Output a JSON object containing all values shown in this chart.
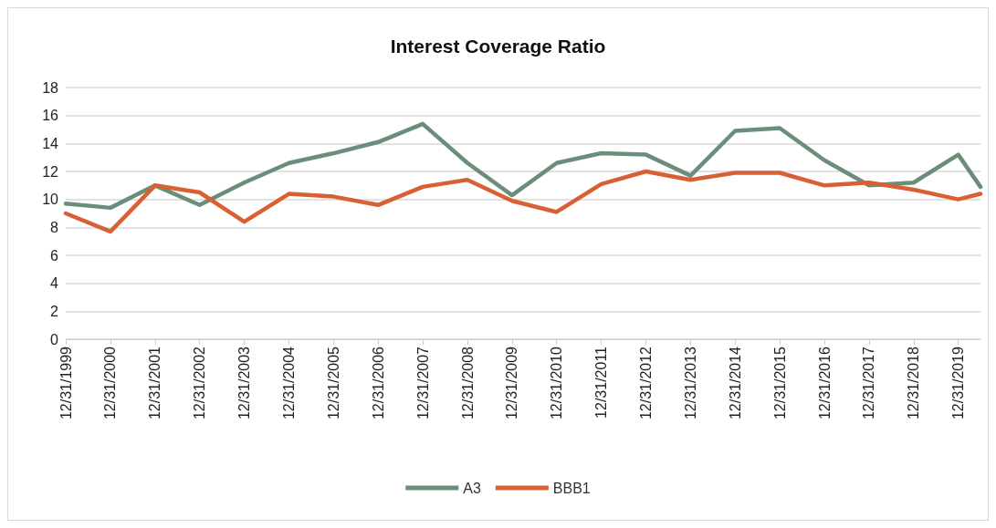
{
  "chart_data": {
    "type": "line",
    "title": "Interest Coverage Ratio",
    "x": [
      "1999-12-31",
      "2000-12-31",
      "2001-12-31",
      "2002-12-31",
      "2003-12-31",
      "2004-12-31",
      "2005-12-31",
      "2006-12-31",
      "2007-12-31",
      "2008-12-31",
      "2009-12-31",
      "2010-12-31",
      "2011-12-31",
      "2012-12-31",
      "2013-12-31",
      "2014-12-31",
      "2015-12-31",
      "2016-12-31",
      "2017-12-31",
      "2018-12-31",
      "2019-12-31",
      "2020-06-30"
    ],
    "series": [
      {
        "name": "A3",
        "color": "#6b8e7a",
        "values": [
          9.7,
          9.4,
          11.0,
          9.6,
          11.2,
          12.6,
          13.3,
          14.1,
          15.4,
          12.6,
          10.3,
          12.6,
          13.3,
          13.2,
          11.7,
          14.9,
          15.1,
          12.8,
          11.0,
          11.2,
          13.2,
          10.9
        ]
      },
      {
        "name": "BBB1",
        "color": "#d95f35",
        "values": [
          9.0,
          7.7,
          11.0,
          10.5,
          8.4,
          10.4,
          10.2,
          9.6,
          10.9,
          11.4,
          9.9,
          9.1,
          11.1,
          12.0,
          11.4,
          11.9,
          11.9,
          11.0,
          11.2,
          10.7,
          10.0,
          10.4
        ]
      }
    ],
    "xlim": [
      "1999-12-31",
      "2020-06-30"
    ],
    "xticks": [
      {
        "value": "1999-12-31",
        "label": "12/31/1999"
      },
      {
        "value": "2000-12-31",
        "label": "12/31/2000"
      },
      {
        "value": "2001-12-31",
        "label": "12/31/2001"
      },
      {
        "value": "2002-12-31",
        "label": "12/31/2002"
      },
      {
        "value": "2003-12-31",
        "label": "12/31/2003"
      },
      {
        "value": "2004-12-31",
        "label": "12/31/2004"
      },
      {
        "value": "2005-12-31",
        "label": "12/31/2005"
      },
      {
        "value": "2006-12-31",
        "label": "12/31/2006"
      },
      {
        "value": "2007-12-31",
        "label": "12/31/2007"
      },
      {
        "value": "2008-12-31",
        "label": "12/31/2008"
      },
      {
        "value": "2009-12-31",
        "label": "12/31/2009"
      },
      {
        "value": "2010-12-31",
        "label": "12/31/2010"
      },
      {
        "value": "2011-12-31",
        "label": "12/31/2011"
      },
      {
        "value": "2012-12-31",
        "label": "12/31/2012"
      },
      {
        "value": "2013-12-31",
        "label": "12/31/2013"
      },
      {
        "value": "2014-12-31",
        "label": "12/31/2014"
      },
      {
        "value": "2015-12-31",
        "label": "12/31/2015"
      },
      {
        "value": "2016-12-31",
        "label": "12/31/2016"
      },
      {
        "value": "2017-12-31",
        "label": "12/31/2017"
      },
      {
        "value": "2018-12-31",
        "label": "12/31/2018"
      },
      {
        "value": "2019-12-31",
        "label": "12/31/2019"
      }
    ],
    "ylim": [
      0,
      18
    ],
    "yticks": [
      0,
      2,
      4,
      6,
      8,
      10,
      12,
      14,
      16,
      18
    ],
    "grid": "y",
    "legend": "bottom",
    "marker": "none",
    "line_style": "solid"
  }
}
